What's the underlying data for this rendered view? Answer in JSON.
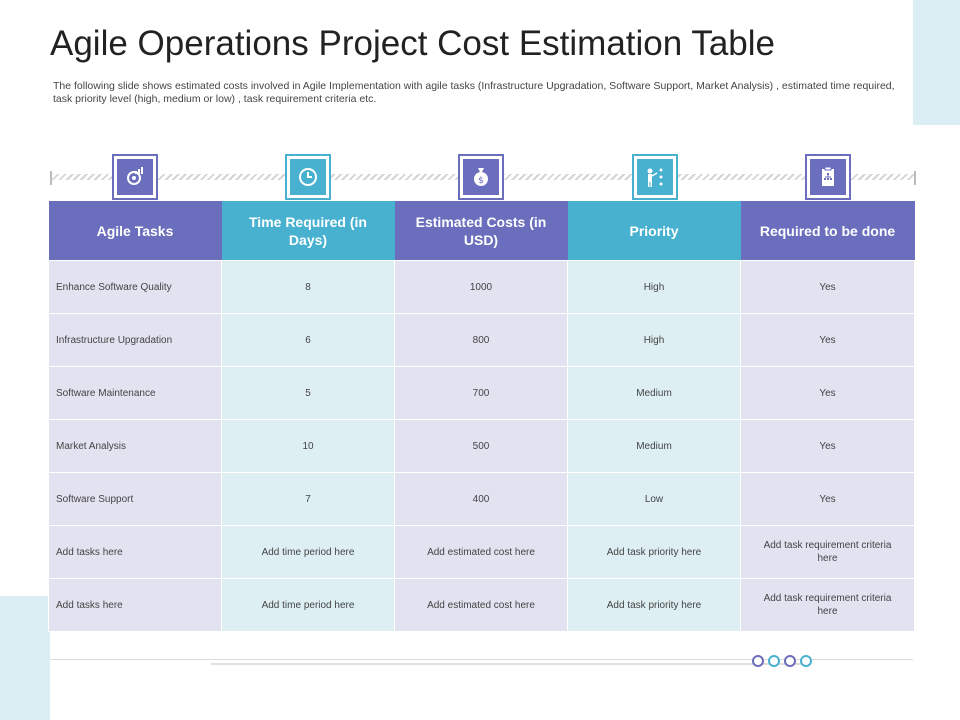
{
  "title": "Agile Operations Project Cost Estimation Table",
  "subtitle": "The following slide shows estimated costs involved in Agile Implementation with agile tasks (Infrastructure Upgradation, Software Support, Market Analysis) , estimated time required, task priority level (high, medium or low) , task requirement criteria etc.",
  "colors": {
    "purple": "#6b6dbd",
    "cyan": "#48b1cf",
    "lavender_bg": "#e2e2f1",
    "aqua_bg": "#ddeff3"
  },
  "icons": [
    "gear-chart-icon",
    "clock-icon",
    "money-bag-icon",
    "presenter-icon",
    "clipboard-icon"
  ],
  "table": {
    "headers": [
      "Agile Tasks",
      "Time Required (in Days)",
      "Estimated Costs (in USD)",
      "Priority",
      "Required to be done"
    ],
    "rows": [
      [
        "Enhance Software Quality",
        "8",
        "1000",
        "High",
        "Yes"
      ],
      [
        "Infrastructure Upgradation",
        "6",
        "800",
        "High",
        "Yes"
      ],
      [
        "Software Maintenance",
        "5",
        "700",
        "Medium",
        "Yes"
      ],
      [
        "Market Analysis",
        "10",
        "500",
        "Medium",
        "Yes"
      ],
      [
        "Software Support",
        "7",
        "400",
        "Low",
        "Yes"
      ],
      [
        "Add tasks here",
        "Add time period here",
        "Add estimated cost here",
        "Add task priority here",
        "Add task requirement criteria here"
      ],
      [
        "Add tasks here",
        "Add time period here",
        "Add estimated cost here",
        "Add task priority here",
        "Add task requirement criteria here"
      ]
    ]
  }
}
